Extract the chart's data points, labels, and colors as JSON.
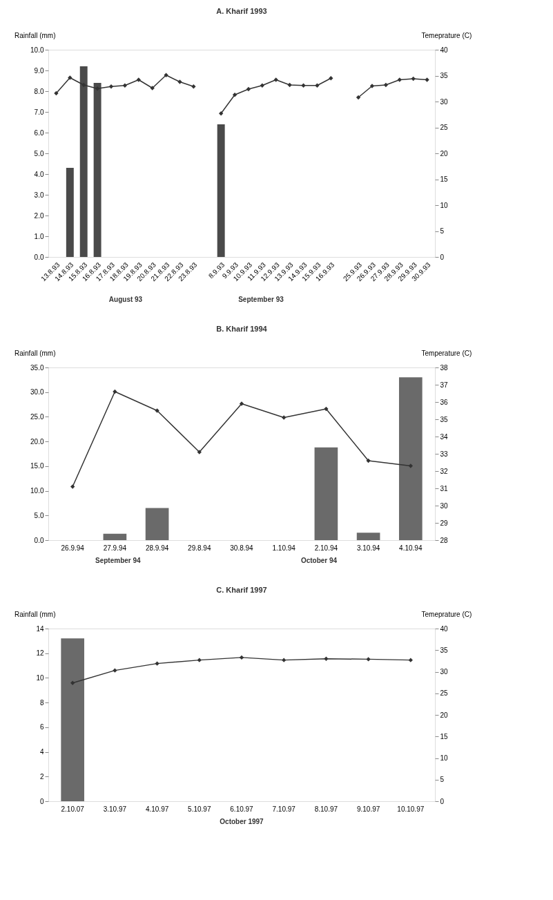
{
  "chart_data": [
    {
      "type": "bar",
      "title": "A. Kharif 1993",
      "ylabel": "Rainfall (mm)",
      "y2label": "Temeprature (C)",
      "categories": [
        "13.8.93",
        "14.8.93",
        "15.8.93",
        "16.8.93",
        "17.8.93",
        "18.8.93",
        "19.8.93",
        "20.8.93",
        "21.8.93",
        "22.8.93",
        "23.8.93",
        null,
        "8.9.93",
        "9.9.93",
        "10.9.93",
        "11.9.93",
        "12.9.93",
        "13.9.93",
        "14.9.93",
        "15.9.93",
        "16.9.93",
        null,
        "25.9.93",
        "26.9.93",
        "27.9.93",
        "28.9.93",
        "29.9.93",
        "30.9.93"
      ],
      "series": [
        {
          "color": "#4a4a4a",
          "values": [
            null,
            4.3,
            9.2,
            8.4,
            null,
            null,
            null,
            null,
            null,
            null,
            null,
            null,
            6.4,
            null,
            null,
            null,
            null,
            null,
            null,
            null,
            null,
            null,
            null,
            null,
            null,
            null,
            null,
            null
          ]
        },
        {
          "type": "line",
          "axis": "y2",
          "color": "#333333",
          "values": [
            31.6,
            34.6,
            33.2,
            32.5,
            32.9,
            33.1,
            34.2,
            32.6,
            35.1,
            33.8,
            32.9,
            null,
            27.7,
            31.3,
            32.4,
            33.1,
            34.2,
            33.2,
            33.1,
            33.1,
            34.5,
            null,
            30.8,
            33.0,
            33.2,
            34.2,
            34.4,
            34.2
          ]
        }
      ],
      "ylim": [
        0,
        10
      ],
      "yticks": [
        {
          "value": 0,
          "label": "0.0"
        },
        {
          "value": 1,
          "label": "1.0"
        },
        {
          "value": 2,
          "label": "2.0"
        },
        {
          "value": 3,
          "label": "3.0"
        },
        {
          "value": 4,
          "label": "4.0"
        },
        {
          "value": 5,
          "label": "5.0"
        },
        {
          "value": 6,
          "label": "6.0"
        },
        {
          "value": 7,
          "label": "7.0"
        },
        {
          "value": 8,
          "label": "8.0"
        },
        {
          "value": 9,
          "label": "9.0"
        },
        {
          "value": 10,
          "label": "10.0"
        }
      ],
      "y2lim": [
        0,
        40
      ],
      "y2ticks": [
        0,
        5,
        10,
        15,
        20,
        25,
        30,
        35,
        40
      ],
      "marker": "diamond",
      "annotations": [
        "August 93",
        "September 93"
      ]
    },
    {
      "type": "bar",
      "title": "B. Kharif 1994",
      "ylabel": "Rainfall (mm)",
      "y2label": "Temperature (C)",
      "categories": [
        "26.9.94",
        "27.9.94",
        "28.9.94",
        "29.8.94",
        "30.8.94",
        "1.10.94",
        "2.10.94",
        "3.10.94",
        "4.10.94"
      ],
      "series": [
        {
          "color": "#6a6a6a",
          "values": [
            null,
            1.3,
            6.5,
            null,
            null,
            null,
            18.8,
            1.5,
            33.0
          ]
        },
        {
          "type": "line",
          "axis": "y2",
          "color": "#333333",
          "values": [
            31.1,
            36.6,
            35.5,
            33.1,
            35.9,
            35.1,
            35.6,
            32.6,
            32.3
          ]
        }
      ],
      "ylim": [
        0,
        35
      ],
      "yticks": [
        {
          "value": 0,
          "label": "0.0"
        },
        {
          "value": 5,
          "label": "5.0"
        },
        {
          "value": 10,
          "label": "10.0"
        },
        {
          "value": 15,
          "label": "15.0"
        },
        {
          "value": 20,
          "label": "20.0"
        },
        {
          "value": 25,
          "label": "25.0"
        },
        {
          "value": 30,
          "label": "30.0"
        },
        {
          "value": 35,
          "label": "35.0"
        }
      ],
      "y2lim": [
        28,
        38
      ],
      "y2ticks": [
        28,
        29,
        30,
        31,
        32,
        33,
        34,
        35,
        36,
        37,
        38
      ],
      "marker": "diamond",
      "annotations": [
        "September 94",
        "October 94"
      ]
    },
    {
      "type": "bar",
      "title": "C. Kharif 1997",
      "ylabel": "Rainfall (mm)",
      "y2label": "Temeprature (C)",
      "categories": [
        "2.10.07",
        "3.10.97",
        "4.10.97",
        "5.10.97",
        "6.10.97",
        "7.10.97",
        "8.10.97",
        "9.10.97",
        "10.10.97"
      ],
      "series": [
        {
          "color": "#6a6a6a",
          "values": [
            13.2,
            null,
            null,
            null,
            null,
            null,
            null,
            null,
            null
          ]
        },
        {
          "type": "line",
          "axis": "y2",
          "color": "#333333",
          "values": [
            27.4,
            30.3,
            31.9,
            32.7,
            33.3,
            32.7,
            33.0,
            32.9,
            32.7
          ]
        }
      ],
      "ylim": [
        0,
        14
      ],
      "yticks": [
        0,
        2,
        4,
        6,
        8,
        10,
        12,
        14
      ],
      "y2lim": [
        0,
        40
      ],
      "y2ticks": [
        0,
        5,
        10,
        15,
        20,
        25,
        30,
        35,
        40
      ],
      "marker": "diamond",
      "annotations": [
        "October 1997"
      ]
    }
  ]
}
